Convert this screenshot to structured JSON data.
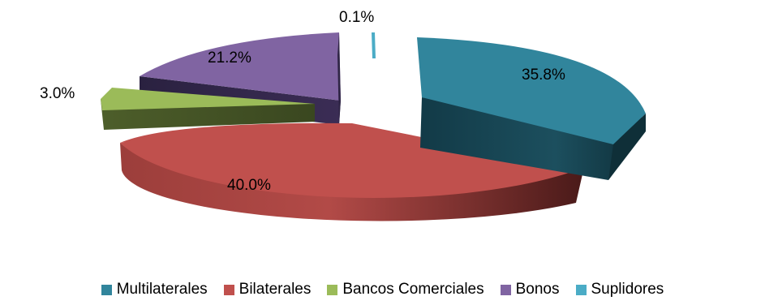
{
  "chart_data": {
    "type": "pie",
    "title": "",
    "categories": [
      "Multilaterales",
      "Bilaterales",
      "Bancos Comerciales",
      "Bonos",
      "Suplidores"
    ],
    "values": [
      35.8,
      40.0,
      3.0,
      21.2,
      0.1
    ],
    "labels": [
      "35.8%",
      "40.0%",
      "3.0%",
      "21.2%",
      "0.1%"
    ],
    "colors": [
      "#31859c",
      "#c0504d",
      "#9bbb59",
      "#8064a2",
      "#4bacc6"
    ],
    "exploded": true,
    "legend_position": "bottom"
  }
}
